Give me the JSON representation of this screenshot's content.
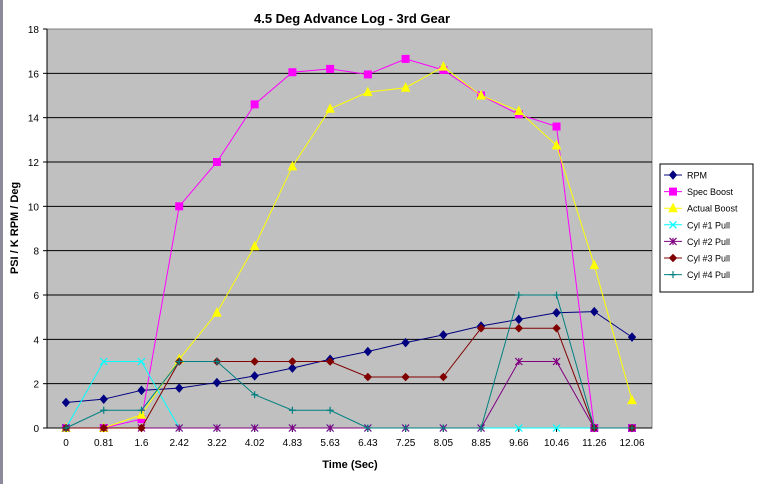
{
  "chart_data": {
    "type": "line",
    "title": "4.5 Deg Advance Log - 3rd Gear",
    "xlabel": "Time (Sec)",
    "ylabel": "PSI / K RPM / Deg",
    "categories": [
      "0",
      "0.81",
      "1.6",
      "2.42",
      "3.22",
      "4.02",
      "4.83",
      "5.63",
      "6.43",
      "7.25",
      "8.05",
      "8.85",
      "9.66",
      "10.46",
      "11.26",
      "12.06"
    ],
    "ylim": [
      0,
      18
    ],
    "yticks": [
      0,
      2,
      4,
      6,
      8,
      10,
      12,
      14,
      16,
      18
    ],
    "grid": true,
    "legend_position": "right",
    "series": [
      {
        "name": "RPM",
        "color": "#000080",
        "marker": "diamond",
        "values": [
          1.15,
          1.3,
          1.7,
          1.8,
          2.05,
          2.35,
          2.7,
          3.1,
          3.45,
          3.85,
          4.2,
          4.6,
          4.9,
          5.2,
          5.25,
          4.1
        ]
      },
      {
        "name": "Spec Boost",
        "color": "#ff00ff",
        "marker": "square",
        "values": [
          0,
          0,
          0.4,
          10,
          12,
          14.6,
          16.05,
          16.2,
          15.95,
          16.65,
          16.15,
          15,
          14.15,
          13.6,
          0,
          0
        ]
      },
      {
        "name": "Actual Boost",
        "color": "#ffff00",
        "marker": "triangle",
        "values": [
          0,
          0,
          0.6,
          3.1,
          5.2,
          8.2,
          11.8,
          14.4,
          15.15,
          15.35,
          16.3,
          15,
          14.3,
          12.75,
          7.35,
          1.25
        ]
      },
      {
        "name": "Cyl #1 Pull",
        "color": "#00ffff",
        "marker": "x",
        "values": [
          0,
          3,
          3,
          0,
          0,
          0,
          0,
          0,
          0,
          0,
          0,
          0,
          0,
          0,
          0,
          0
        ]
      },
      {
        "name": "Cyl #2 Pull",
        "color": "#800080",
        "marker": "star",
        "values": [
          0,
          0,
          0,
          0,
          0,
          0,
          0,
          0,
          0,
          0,
          0,
          0,
          3,
          3,
          0,
          0
        ]
      },
      {
        "name": "Cyl #3 Pull",
        "color": "#800000",
        "marker": "circle",
        "values": [
          0,
          0,
          0,
          3,
          3,
          3,
          3,
          3,
          2.3,
          2.3,
          2.3,
          4.5,
          4.5,
          4.5,
          0,
          0
        ]
      },
      {
        "name": "Cyl #4 Pull",
        "color": "#008080",
        "marker": "plus",
        "values": [
          0,
          0.8,
          0.8,
          3,
          3,
          1.5,
          0.8,
          0.8,
          0,
          0,
          0,
          0,
          6,
          6,
          0,
          0
        ]
      }
    ]
  }
}
